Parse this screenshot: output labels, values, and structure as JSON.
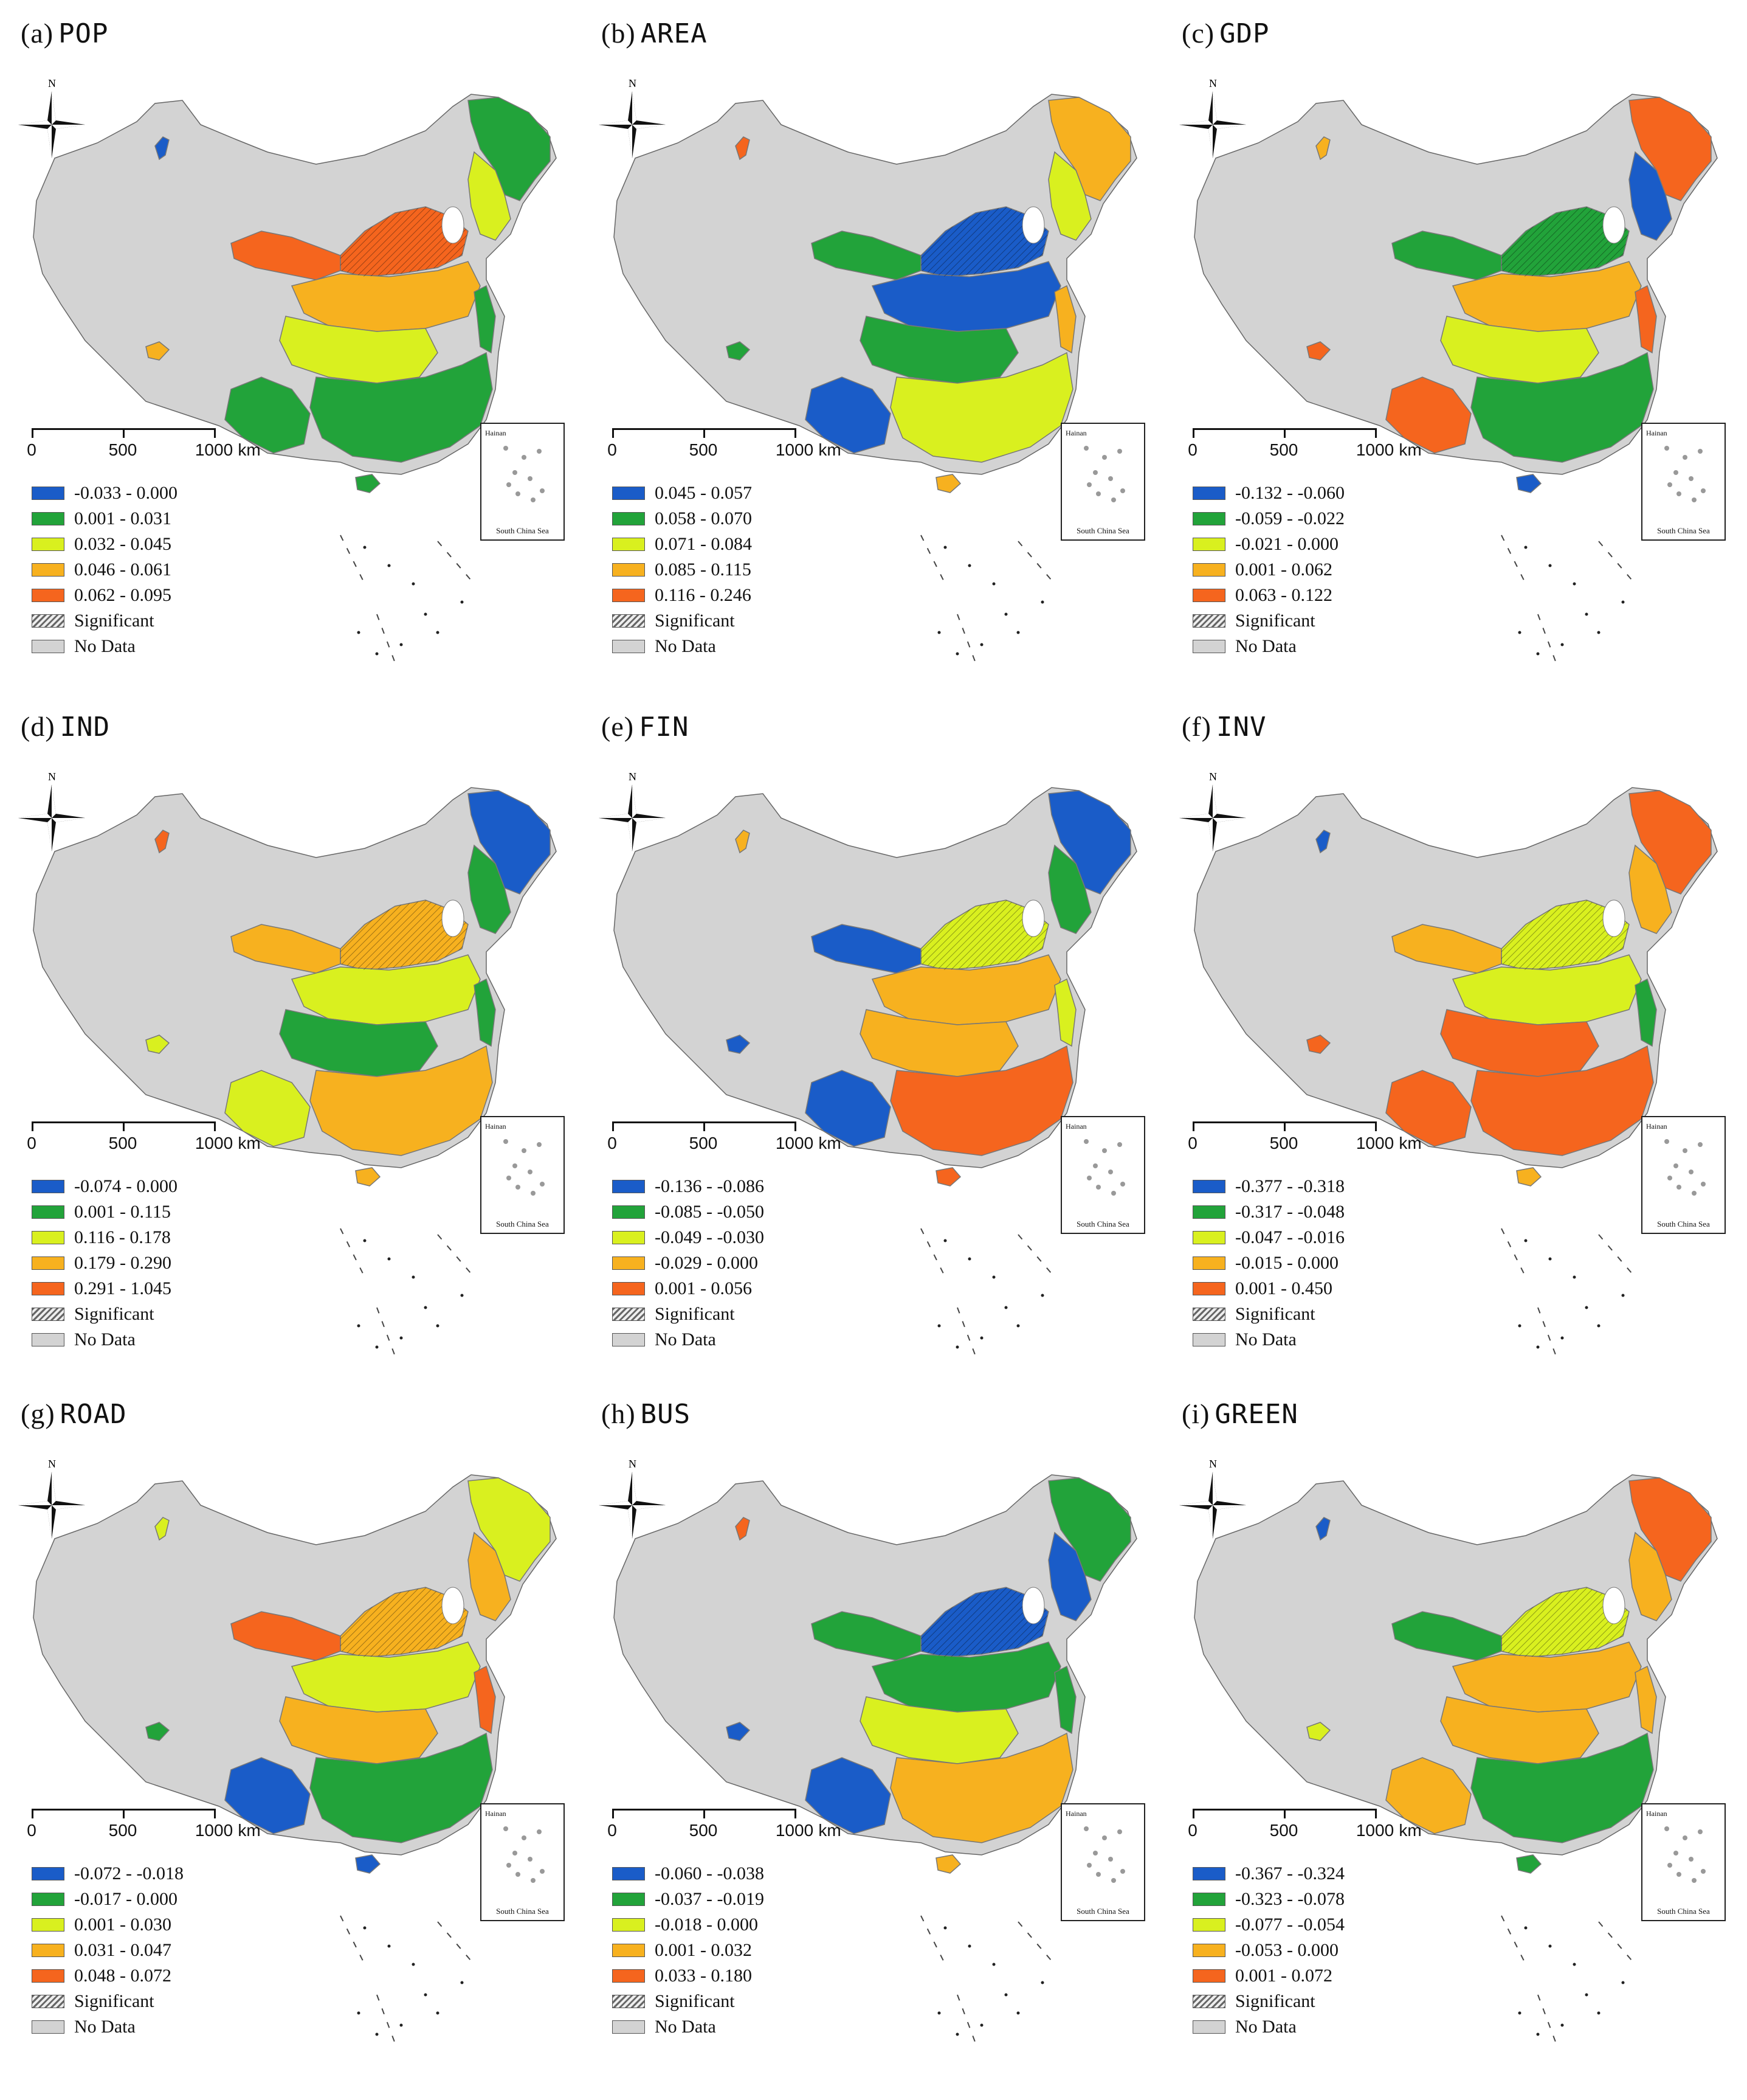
{
  "scale_bar": {
    "ticks": [
      "0",
      "500",
      "1000"
    ],
    "unit": "km"
  },
  "north_label": "N",
  "inset": {
    "caption": "South China Sea",
    "corner_label": "Hainan"
  },
  "legend_common": {
    "significant": "Significant",
    "no_data": "No Data"
  },
  "colors": {
    "blue": "#1a5cc8",
    "green": "#22a33a",
    "yellow": "#d9f01f",
    "orange": "#f7b11f",
    "red": "#f5651e",
    "nodata": "#d3d3d3"
  },
  "panels": [
    {
      "letter": "(a)",
      "variable": "POP",
      "classes": [
        "-0.033 - 0.000",
        "0.001 - 0.031",
        "0.032 - 0.045",
        "0.046 - 0.061",
        "0.062 - 0.095"
      ],
      "regions": {
        "xinjiang_n": "blue",
        "ne": "green",
        "ne_inner": "yellow",
        "north": "red",
        "center_w": "red",
        "center": "orange",
        "central_s": "yellow",
        "south": "green",
        "southwest": "green",
        "tibet_spot": "orange",
        "hainan": "green",
        "east_coast": "green"
      }
    },
    {
      "letter": "(b)",
      "variable": "AREA",
      "classes": [
        "0.045 - 0.057",
        "0.058 - 0.070",
        "0.071 - 0.084",
        "0.085 - 0.115",
        "0.116 - 0.246"
      ],
      "regions": {
        "xinjiang_n": "red",
        "ne": "orange",
        "ne_inner": "yellow",
        "north": "blue",
        "center_w": "green",
        "center": "blue",
        "central_s": "green",
        "south": "yellow",
        "southwest": "blue",
        "tibet_spot": "green",
        "hainan": "orange",
        "east_coast": "orange"
      }
    },
    {
      "letter": "(c)",
      "variable": "GDP",
      "classes": [
        "-0.132 - -0.060",
        "-0.059 - -0.022",
        "-0.021 - 0.000",
        "0.001 - 0.062",
        "0.063 - 0.122"
      ],
      "regions": {
        "xinjiang_n": "orange",
        "ne": "red",
        "ne_inner": "blue",
        "north": "green",
        "center_w": "green",
        "center": "orange",
        "central_s": "yellow",
        "south": "green",
        "southwest": "red",
        "tibet_spot": "red",
        "hainan": "blue",
        "east_coast": "red"
      }
    },
    {
      "letter": "(d)",
      "variable": "IND",
      "classes": [
        "-0.074 - 0.000",
        "0.001 - 0.115",
        "0.116 - 0.178",
        "0.179 - 0.290",
        "0.291 - 1.045"
      ],
      "regions": {
        "xinjiang_n": "red",
        "ne": "blue",
        "ne_inner": "green",
        "north": "orange",
        "center_w": "orange",
        "center": "yellow",
        "central_s": "green",
        "south": "orange",
        "southwest": "yellow",
        "tibet_spot": "yellow",
        "hainan": "orange",
        "east_coast": "green"
      }
    },
    {
      "letter": "(e)",
      "variable": "FIN",
      "classes": [
        "-0.136 - -0.086",
        "-0.085 - -0.050",
        "-0.049 - -0.030",
        "-0.029 - 0.000",
        "0.001 - 0.056"
      ],
      "regions": {
        "xinjiang_n": "orange",
        "ne": "blue",
        "ne_inner": "green",
        "north": "yellow",
        "center_w": "blue",
        "center": "orange",
        "central_s": "orange",
        "south": "red",
        "southwest": "blue",
        "tibet_spot": "blue",
        "hainan": "red",
        "east_coast": "yellow"
      }
    },
    {
      "letter": "(f)",
      "variable": "INV",
      "classes": [
        "-0.377 - -0.318",
        "-0.317 - -0.048",
        "-0.047 - -0.016",
        "-0.015 - 0.000",
        "0.001 - 0.450"
      ],
      "regions": {
        "xinjiang_n": "blue",
        "ne": "red",
        "ne_inner": "orange",
        "north": "yellow",
        "center_w": "orange",
        "center": "yellow",
        "central_s": "red",
        "south": "red",
        "southwest": "red",
        "tibet_spot": "red",
        "hainan": "orange",
        "east_coast": "green"
      }
    },
    {
      "letter": "(g)",
      "variable": "ROAD",
      "classes": [
        "-0.072 - -0.018",
        "-0.017 - 0.000",
        "0.001 - 0.030",
        "0.031 - 0.047",
        "0.048 - 0.072"
      ],
      "regions": {
        "xinjiang_n": "yellow",
        "ne": "yellow",
        "ne_inner": "orange",
        "north": "orange",
        "center_w": "red",
        "center": "yellow",
        "central_s": "orange",
        "south": "green",
        "southwest": "blue",
        "tibet_spot": "green",
        "hainan": "blue",
        "east_coast": "red"
      }
    },
    {
      "letter": "(h)",
      "variable": "BUS",
      "classes": [
        "-0.060 - -0.038",
        "-0.037 - -0.019",
        "-0.018 - 0.000",
        "0.001 - 0.032",
        "0.033 - 0.180"
      ],
      "regions": {
        "xinjiang_n": "red",
        "ne": "green",
        "ne_inner": "blue",
        "north": "blue",
        "center_w": "green",
        "center": "green",
        "central_s": "yellow",
        "south": "orange",
        "southwest": "blue",
        "tibet_spot": "blue",
        "hainan": "orange",
        "east_coast": "green"
      }
    },
    {
      "letter": "(i)",
      "variable": "GREEN",
      "classes": [
        "-0.367 - -0.324",
        "-0.323 - -0.078",
        "-0.077 - -0.054",
        "-0.053 - 0.000",
        "0.001 - 0.072"
      ],
      "regions": {
        "xinjiang_n": "blue",
        "ne": "red",
        "ne_inner": "orange",
        "north": "yellow",
        "center_w": "green",
        "center": "orange",
        "central_s": "orange",
        "south": "green",
        "southwest": "orange",
        "tibet_spot": "yellow",
        "hainan": "green",
        "east_coast": "orange"
      }
    }
  ]
}
